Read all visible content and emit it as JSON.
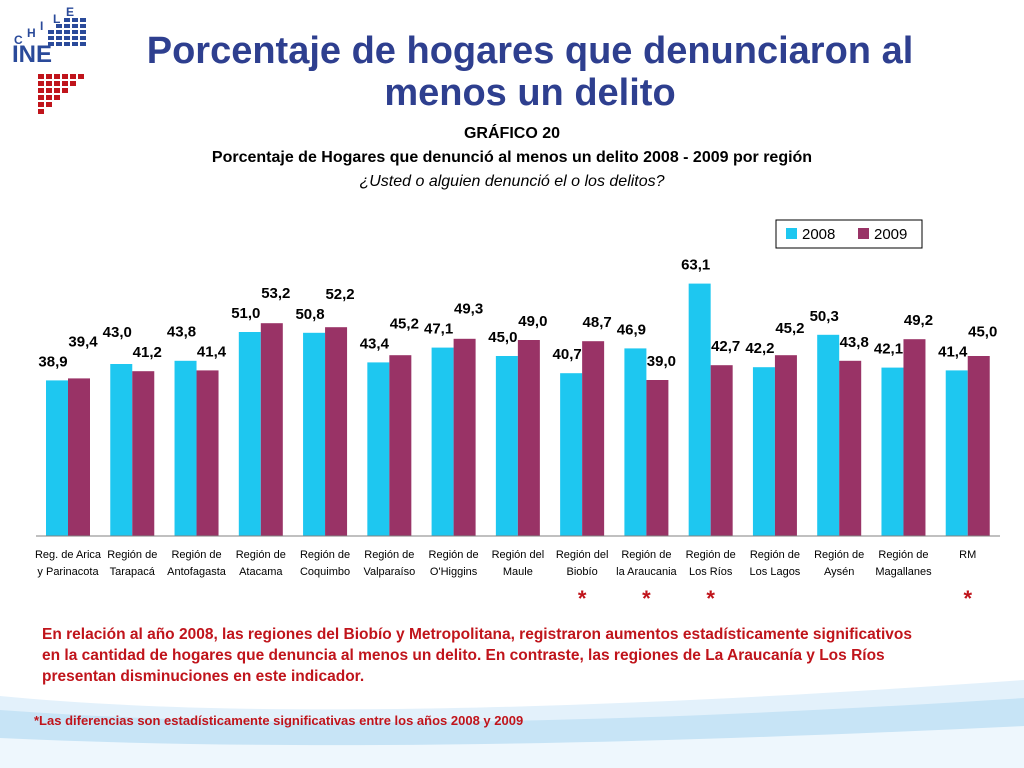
{
  "header": {
    "title": "Porcentaje de hogares que denunciaron al menos un delito",
    "logo_text": "INE",
    "logo_country": "CHILE"
  },
  "chart_data": {
    "type": "bar",
    "title": "GRÁFICO 20",
    "subtitle": "Porcentaje de Hogares que denunció al menos un delito 2008 - 2009 por región",
    "question": "¿Usted o alguien denunció el o los delitos?",
    "categories": [
      [
        "Reg. de Arica",
        "y Parinacota"
      ],
      [
        "Región de",
        "Tarapacá"
      ],
      [
        "Región de",
        "Antofagasta"
      ],
      [
        "Región de",
        "Atacama"
      ],
      [
        "Región de",
        "Coquimbo"
      ],
      [
        "Región de",
        "Valparaíso"
      ],
      [
        "Región de",
        "O'Higgins"
      ],
      [
        "Región del",
        "Maule"
      ],
      [
        "Región del",
        "Biobío"
      ],
      [
        "Región de",
        "la Araucania"
      ],
      [
        "Región de",
        "Los Ríos"
      ],
      [
        "Región de",
        "Los Lagos"
      ],
      [
        "Región de",
        "Aysén"
      ],
      [
        "Región de",
        "Magallanes"
      ],
      [
        "RM",
        ""
      ]
    ],
    "series": [
      {
        "name": "2008",
        "color": "#1ec7f0",
        "values": [
          38.9,
          43.0,
          43.8,
          51.0,
          50.8,
          43.4,
          47.1,
          45.0,
          40.7,
          46.9,
          63.1,
          42.2,
          50.3,
          42.1,
          41.4
        ]
      },
      {
        "name": "2009",
        "color": "#993366",
        "values": [
          39.4,
          41.2,
          41.4,
          53.2,
          52.2,
          45.2,
          49.3,
          49.0,
          48.7,
          39.0,
          42.7,
          45.2,
          43.8,
          49.2,
          45.0
        ]
      }
    ],
    "labels_2008": [
      "38,9",
      "43,0",
      "43,8",
      "51,0",
      "50,8",
      "43,4",
      "47,1",
      "45,0",
      "40,7",
      "46,9",
      "63,1",
      "42,2",
      "50,3",
      "42,1",
      "41,4"
    ],
    "labels_2009": [
      "39,4",
      "41,2",
      "41,4",
      "53,2",
      "52,2",
      "45,2",
      "49,3",
      "49,0",
      "48,7",
      "39,0",
      "42,7",
      "45,2",
      "43,8",
      "49,2",
      "45,0"
    ],
    "significant": [
      false,
      false,
      false,
      false,
      false,
      false,
      false,
      false,
      true,
      true,
      true,
      false,
      false,
      false,
      true
    ],
    "marker": "*",
    "ylim": [
      0,
      70
    ],
    "legend_position": "top-right",
    "grid": false
  },
  "note": "En relación al año 2008, las regiones del Biobío y Metropolitana, registraron aumentos estadísticamente significativos en la cantidad de hogares que denuncia al menos un delito. En contraste, las regiones de La Araucanía y Los Ríos presentan disminuciones en este indicador.",
  "footnote": "*Las diferencias son estadísticamente significativas entre los años 2008 y 2009",
  "colors": {
    "title": "#2e3f8f",
    "note": "#c0141b",
    "logo_blue": "#2a4a9a",
    "logo_red": "#c0141b"
  }
}
